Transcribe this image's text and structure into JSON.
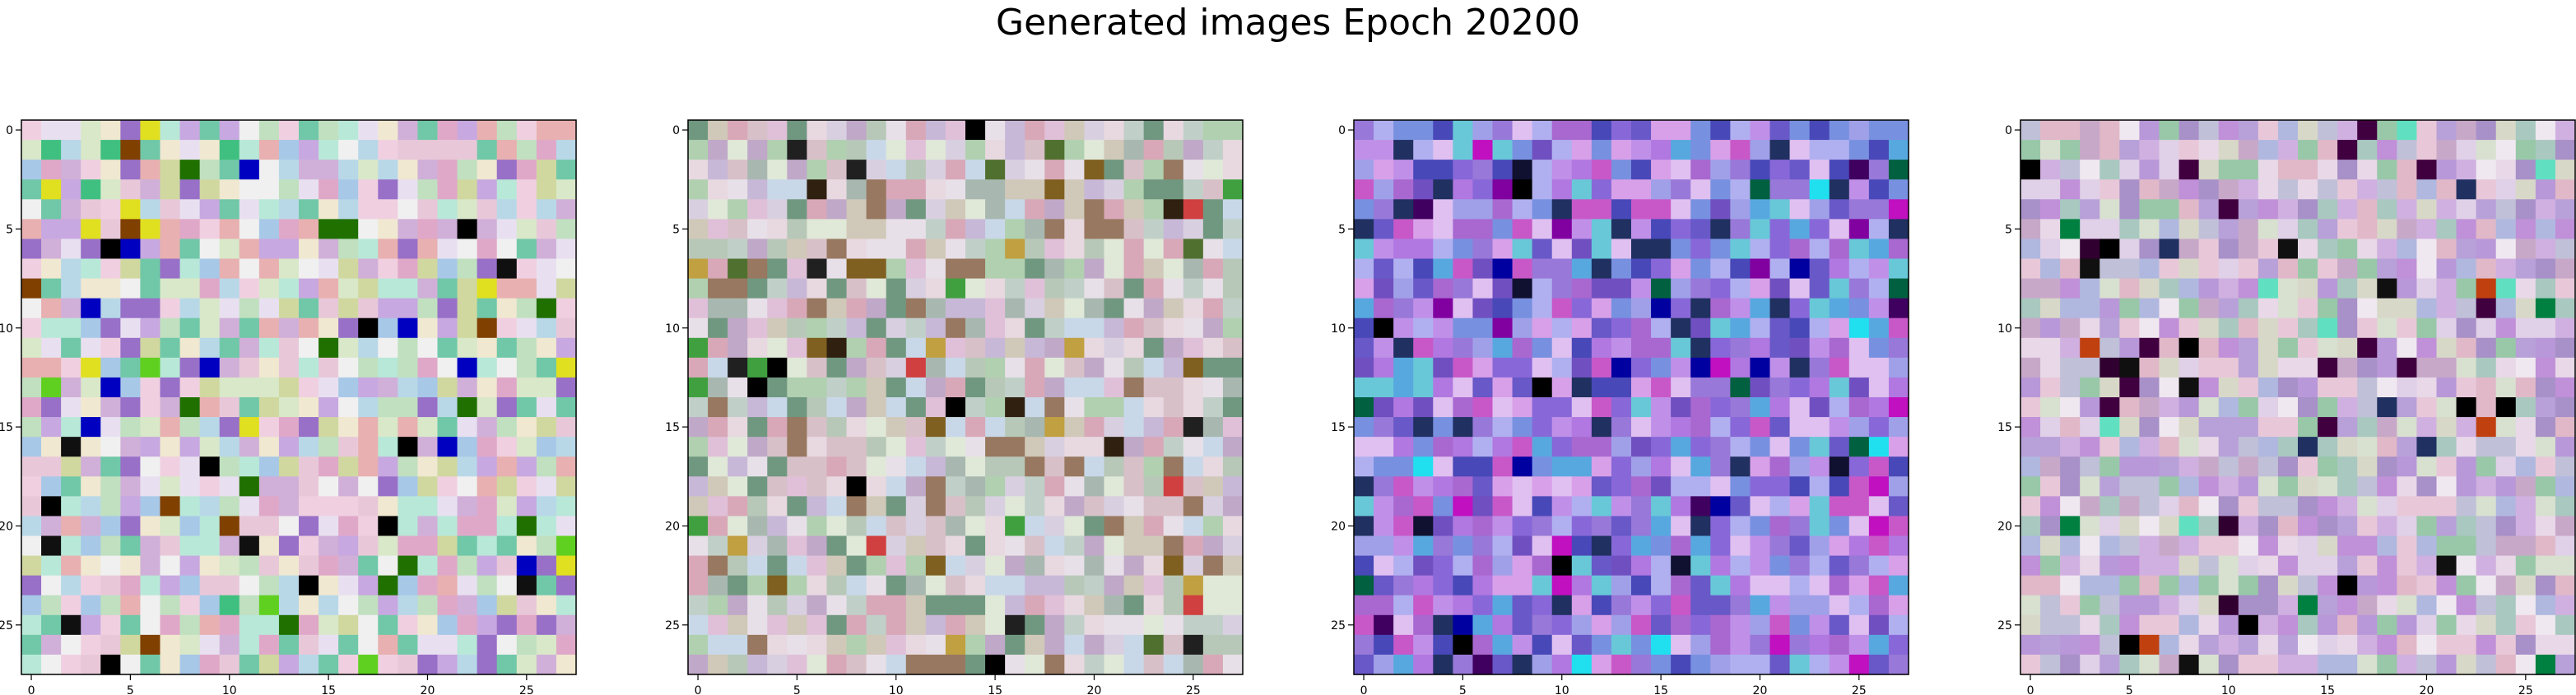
{
  "figure": {
    "title": "Generated images Epoch 20200"
  },
  "chart_data": {
    "type": "heatmap",
    "title": "Generated images Epoch 20200",
    "subplots": 4,
    "image_shape": [
      28,
      28,
      3
    ],
    "x_ticks": [
      0,
      5,
      10,
      15,
      20,
      25
    ],
    "y_ticks": [
      0,
      5,
      10,
      15,
      20,
      25
    ],
    "x_tick_labels": [
      "0",
      "5",
      "10",
      "15",
      "20",
      "25"
    ],
    "y_tick_labels": [
      "0",
      "5",
      "10",
      "15",
      "20",
      "25"
    ],
    "xlim": [
      -0.5,
      27.5
    ],
    "ylim": [
      27.5,
      -0.5
    ],
    "palettes": [
      [
        "#e8c8d8",
        "#c8a8e0",
        "#d8e8c8",
        "#f0d0e0",
        "#b8d8e8",
        "#e8e0f0",
        "#d0b0d8",
        "#c0e0c0",
        "#f0e8d0",
        "#a8c8e8",
        "#e0a8c8",
        "#b8e8d8",
        "#f0f0f0",
        "#9870c8",
        "#d0d8a0",
        "#70c8a8",
        "#e8b0b0"
      ],
      [
        "#d8d0e0",
        "#c8b8d8",
        "#e0e8d8",
        "#c0d0c8",
        "#d8c0c8",
        "#b8c8b8",
        "#e8d8e0",
        "#a8b8b0",
        "#d0c8b8",
        "#c8d8e8",
        "#e0c0d8",
        "#b0d0b0",
        "#987860",
        "#d8a8b8",
        "#709880",
        "#c0a8c8",
        "#e8e0e8"
      ],
      [
        "#8868d8",
        "#b078e0",
        "#6858c8",
        "#c090e8",
        "#a0a0e8",
        "#7890e0",
        "#c858c8",
        "#9878d8",
        "#58a8e0",
        "#d8a0e8",
        "#7050c0",
        "#b0b0f0",
        "#4848b8",
        "#e0c0f0",
        "#a868d0",
        "#68c8d8",
        "#203060"
      ],
      [
        "#d0b0e0",
        "#c0c0d8",
        "#e0d0e8",
        "#b898d8",
        "#d8d8c8",
        "#a8c8c0",
        "#e8c8d8",
        "#c8a8c8",
        "#b0b8e0",
        "#d8e0d0",
        "#a890c8",
        "#e8d8e8",
        "#c090d8",
        "#98c8a8",
        "#e0b8c8",
        "#b8a0d8",
        "#f0e8f0"
      ]
    ],
    "accents": [
      [
        "#000000",
        "#101010",
        "#207000",
        "#e0e020",
        "#40c080",
        "#0000c0",
        "#804000",
        "#60d020"
      ],
      [
        "#000000",
        "#302010",
        "#d04040",
        "#507030",
        "#806020",
        "#40a040",
        "#202020",
        "#c0a040"
      ],
      [
        "#000000",
        "#0000a0",
        "#400060",
        "#101030",
        "#20e0f0",
        "#c010c0",
        "#006040",
        "#8000a0"
      ],
      [
        "#000000",
        "#300030",
        "#203060",
        "#c04010",
        "#008040",
        "#101010",
        "#60e0c0",
        "#400040"
      ]
    ]
  }
}
